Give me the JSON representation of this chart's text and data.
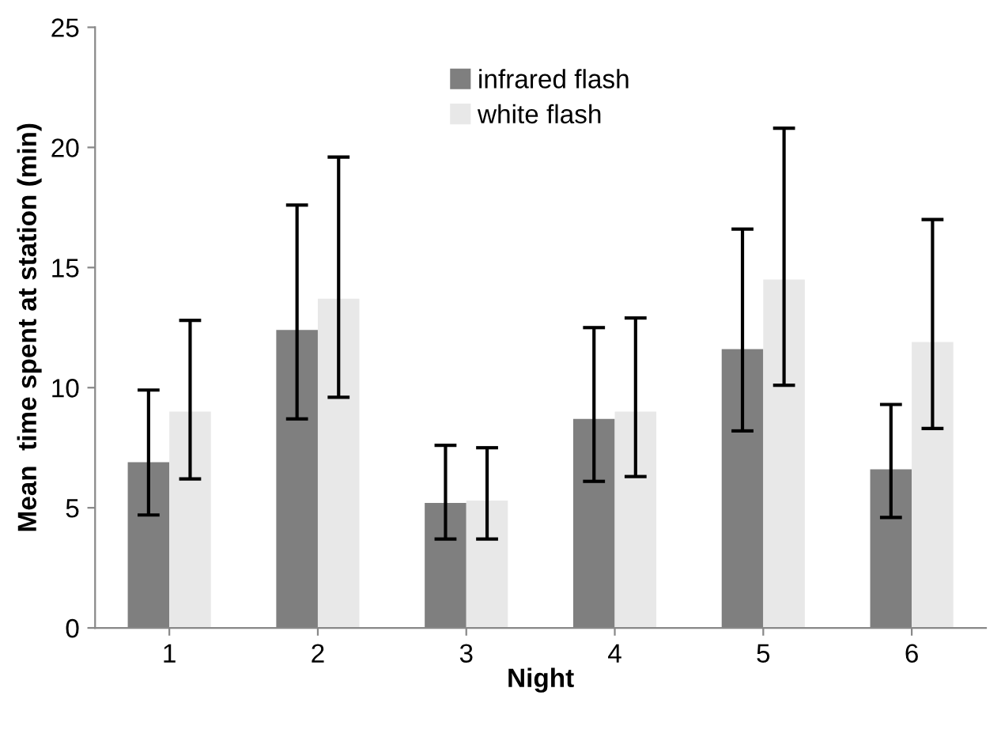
{
  "chart_data": {
    "type": "bar",
    "xlabel": "Night",
    "ylabel": "Mean  time spent at station (min)",
    "categories": [
      "1",
      "2",
      "3",
      "4",
      "5",
      "6"
    ],
    "series": [
      {
        "name": "infrared flash",
        "color": "#7f7f7f",
        "values": [
          6.9,
          12.4,
          5.2,
          8.7,
          11.6,
          6.6
        ],
        "errors": [
          [
            4.7,
            9.9
          ],
          [
            8.7,
            17.6
          ],
          [
            3.7,
            7.6
          ],
          [
            6.1,
            12.5
          ],
          [
            8.2,
            16.6
          ],
          [
            4.6,
            9.3
          ]
        ]
      },
      {
        "name": "white flash",
        "color": "#e8e8e8",
        "values": [
          9.0,
          13.7,
          5.3,
          9.0,
          14.5,
          11.9
        ],
        "errors": [
          [
            6.2,
            12.8
          ],
          [
            9.6,
            19.6
          ],
          [
            3.7,
            7.5
          ],
          [
            6.3,
            12.9
          ],
          [
            10.1,
            20.8
          ],
          [
            8.3,
            17.0
          ]
        ]
      }
    ],
    "ylim": [
      0,
      25
    ],
    "yticks": [
      0,
      5,
      10,
      15,
      20,
      25
    ],
    "grid": false,
    "legend": "top"
  }
}
